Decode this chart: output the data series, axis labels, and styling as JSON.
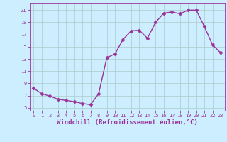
{
  "x": [
    0,
    1,
    2,
    3,
    4,
    5,
    6,
    7,
    8,
    9,
    10,
    11,
    12,
    13,
    14,
    15,
    16,
    17,
    18,
    19,
    20,
    21,
    22,
    23
  ],
  "y": [
    8.2,
    7.3,
    6.9,
    6.4,
    6.2,
    6.0,
    5.7,
    5.5,
    7.3,
    13.2,
    13.8,
    16.2,
    17.6,
    17.7,
    16.4,
    19.0,
    20.5,
    20.7,
    20.4,
    21.0,
    21.0,
    18.3,
    15.3,
    14.0
  ],
  "line_color": "#993399",
  "marker": "D",
  "marker_size": 2.5,
  "linewidth": 1.0,
  "xlabel": "Windchill (Refroidissement éolien,°C)",
  "xlabel_fontsize": 6.5,
  "xlim": [
    -0.5,
    23.5
  ],
  "ylim": [
    4.5,
    22.2
  ],
  "yticks": [
    5,
    7,
    9,
    11,
    13,
    15,
    17,
    19,
    21
  ],
  "xticks": [
    0,
    1,
    2,
    3,
    4,
    5,
    6,
    7,
    8,
    9,
    10,
    11,
    12,
    13,
    14,
    15,
    16,
    17,
    18,
    19,
    20,
    21,
    22,
    23
  ],
  "background_color": "#cceeff",
  "grid_color": "#aacccc",
  "tick_color": "#993399",
  "axis_color": "#993399"
}
